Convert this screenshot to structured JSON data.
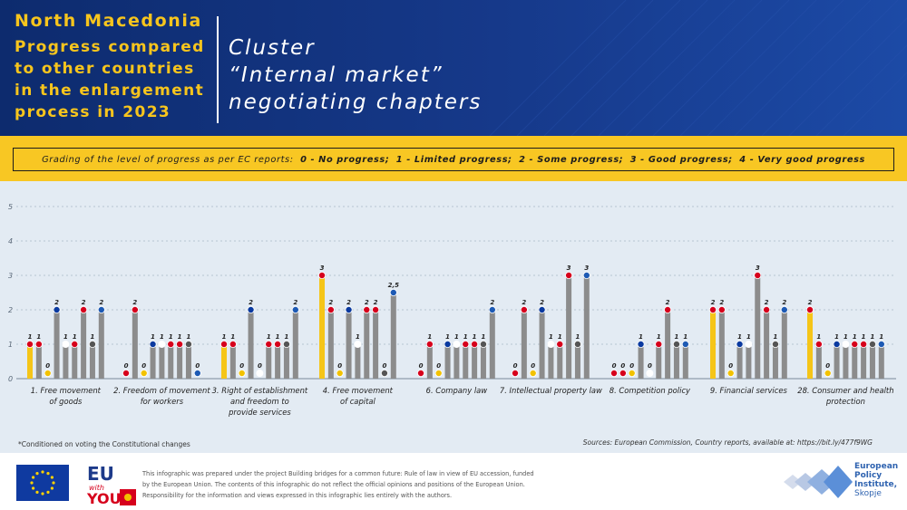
{
  "header": {
    "country": "North Macedonia",
    "subtitle_lines": [
      "Progress compared",
      "to other countries",
      "in the enlargement",
      "process in 2023"
    ],
    "cluster_lines": [
      "Cluster",
      "“Internal market”",
      "negotiating chapters"
    ]
  },
  "grading": {
    "prefix": "Grading of the level of progress as per EC reports:",
    "items": [
      "0 - No progress;",
      "1 - Limited progress;",
      "2 - Some progress;",
      "3 - Good progress;",
      "4 - Very good progress"
    ]
  },
  "chart_data": {
    "type": "bar",
    "ylim": [
      0,
      5
    ],
    "yticks": [
      "0",
      "1",
      "2",
      "3",
      "4",
      "5"
    ],
    "highlight_color": "#f5c518",
    "bar_color": "#8c8c8c",
    "groups": [
      {
        "label": [
          "1. Free movement",
          "of goods"
        ],
        "values": [
          1,
          1,
          0,
          2,
          1,
          1,
          2,
          1,
          2
        ]
      },
      {
        "label": [
          "2. Freedom of movement",
          "for workers"
        ],
        "values": [
          0,
          2,
          0,
          1,
          1,
          1,
          1,
          1,
          0
        ]
      },
      {
        "label": [
          "3. Right of establishment",
          "and freedom to",
          "provide services"
        ],
        "values": [
          1,
          1,
          0,
          2,
          0,
          1,
          1,
          1,
          2
        ]
      },
      {
        "label": [
          "4. Free movement",
          "of capital"
        ],
        "values": [
          3,
          2,
          0,
          2,
          1,
          2,
          2,
          0,
          2.5
        ]
      },
      {
        "label": [
          "6. Company law"
        ],
        "values": [
          0,
          1,
          0,
          1,
          1,
          1,
          1,
          1,
          2
        ]
      },
      {
        "label": [
          "7. Intellectual property law"
        ],
        "values": [
          0,
          2,
          0,
          2,
          1,
          1,
          3,
          1,
          3
        ]
      },
      {
        "label": [
          "8. Competition policy"
        ],
        "values": [
          0,
          0,
          0,
          1,
          0,
          1,
          2,
          1,
          1
        ]
      },
      {
        "label": [
          "9. Financial services"
        ],
        "values": [
          2,
          2,
          0,
          1,
          1,
          3,
          2,
          1,
          2
        ]
      },
      {
        "label": [
          "28. Consumer and health",
          "protection"
        ],
        "values": [
          2,
          1,
          0,
          1,
          1,
          1,
          1,
          1,
          1
        ]
      }
    ],
    "value_labels": [
      [
        "1",
        "1",
        "0",
        "2",
        "1",
        "1",
        "2",
        "1",
        "2"
      ],
      [
        "0",
        "2",
        "0",
        "1",
        "1",
        "1",
        "1",
        "1",
        "0"
      ],
      [
        "1",
        "1",
        "0",
        "2",
        "0",
        "1",
        "1",
        "1",
        "2"
      ],
      [
        "3",
        "2",
        "0",
        "2",
        "1",
        "2",
        "2",
        "0",
        "2,5"
      ],
      [
        "0",
        "1",
        "0",
        "1",
        "1",
        "1",
        "1",
        "1",
        "2"
      ],
      [
        "0",
        "2",
        "0",
        "2",
        "1",
        "1",
        "3",
        "1",
        "3"
      ],
      [
        "0",
        "0",
        "0",
        "1",
        "0",
        "1",
        "2",
        "1",
        "1"
      ],
      [
        "2",
        "2",
        "0",
        "1",
        "1",
        "3",
        "2",
        "1",
        "2"
      ],
      [
        "2",
        "1",
        "0",
        "1",
        "1",
        "1",
        "1",
        "1",
        "1"
      ]
    ]
  },
  "footnote": "*Conditioned on voting the Constitutional changes",
  "sources": "Sources: European Commission, Country reports, available at: https://bit.ly/477f9WG",
  "disclaimer": "This infographic was prepared under the project Building bridges for a common future: Rule of law in view of EU accession, funded by the European Union. The contents of this infographic do not reflect the official opinions and positions of the European Union. Responsibility for the information and views expressed in this infographic lies entirely with the authors.",
  "euyou": {
    "line1": "EU",
    "line2": "with",
    "line3": "YOU"
  },
  "epi": {
    "lines": [
      "European",
      "Policy",
      "Institute,"
    ],
    "city": "Skopje"
  },
  "flag_colors": [
    "#d6001c",
    "#d6001c",
    "#f2c200",
    "#0a3aa0",
    "#ffffff",
    "#d6001c",
    "#d6001c",
    "#555555",
    "#1d5ab4"
  ]
}
